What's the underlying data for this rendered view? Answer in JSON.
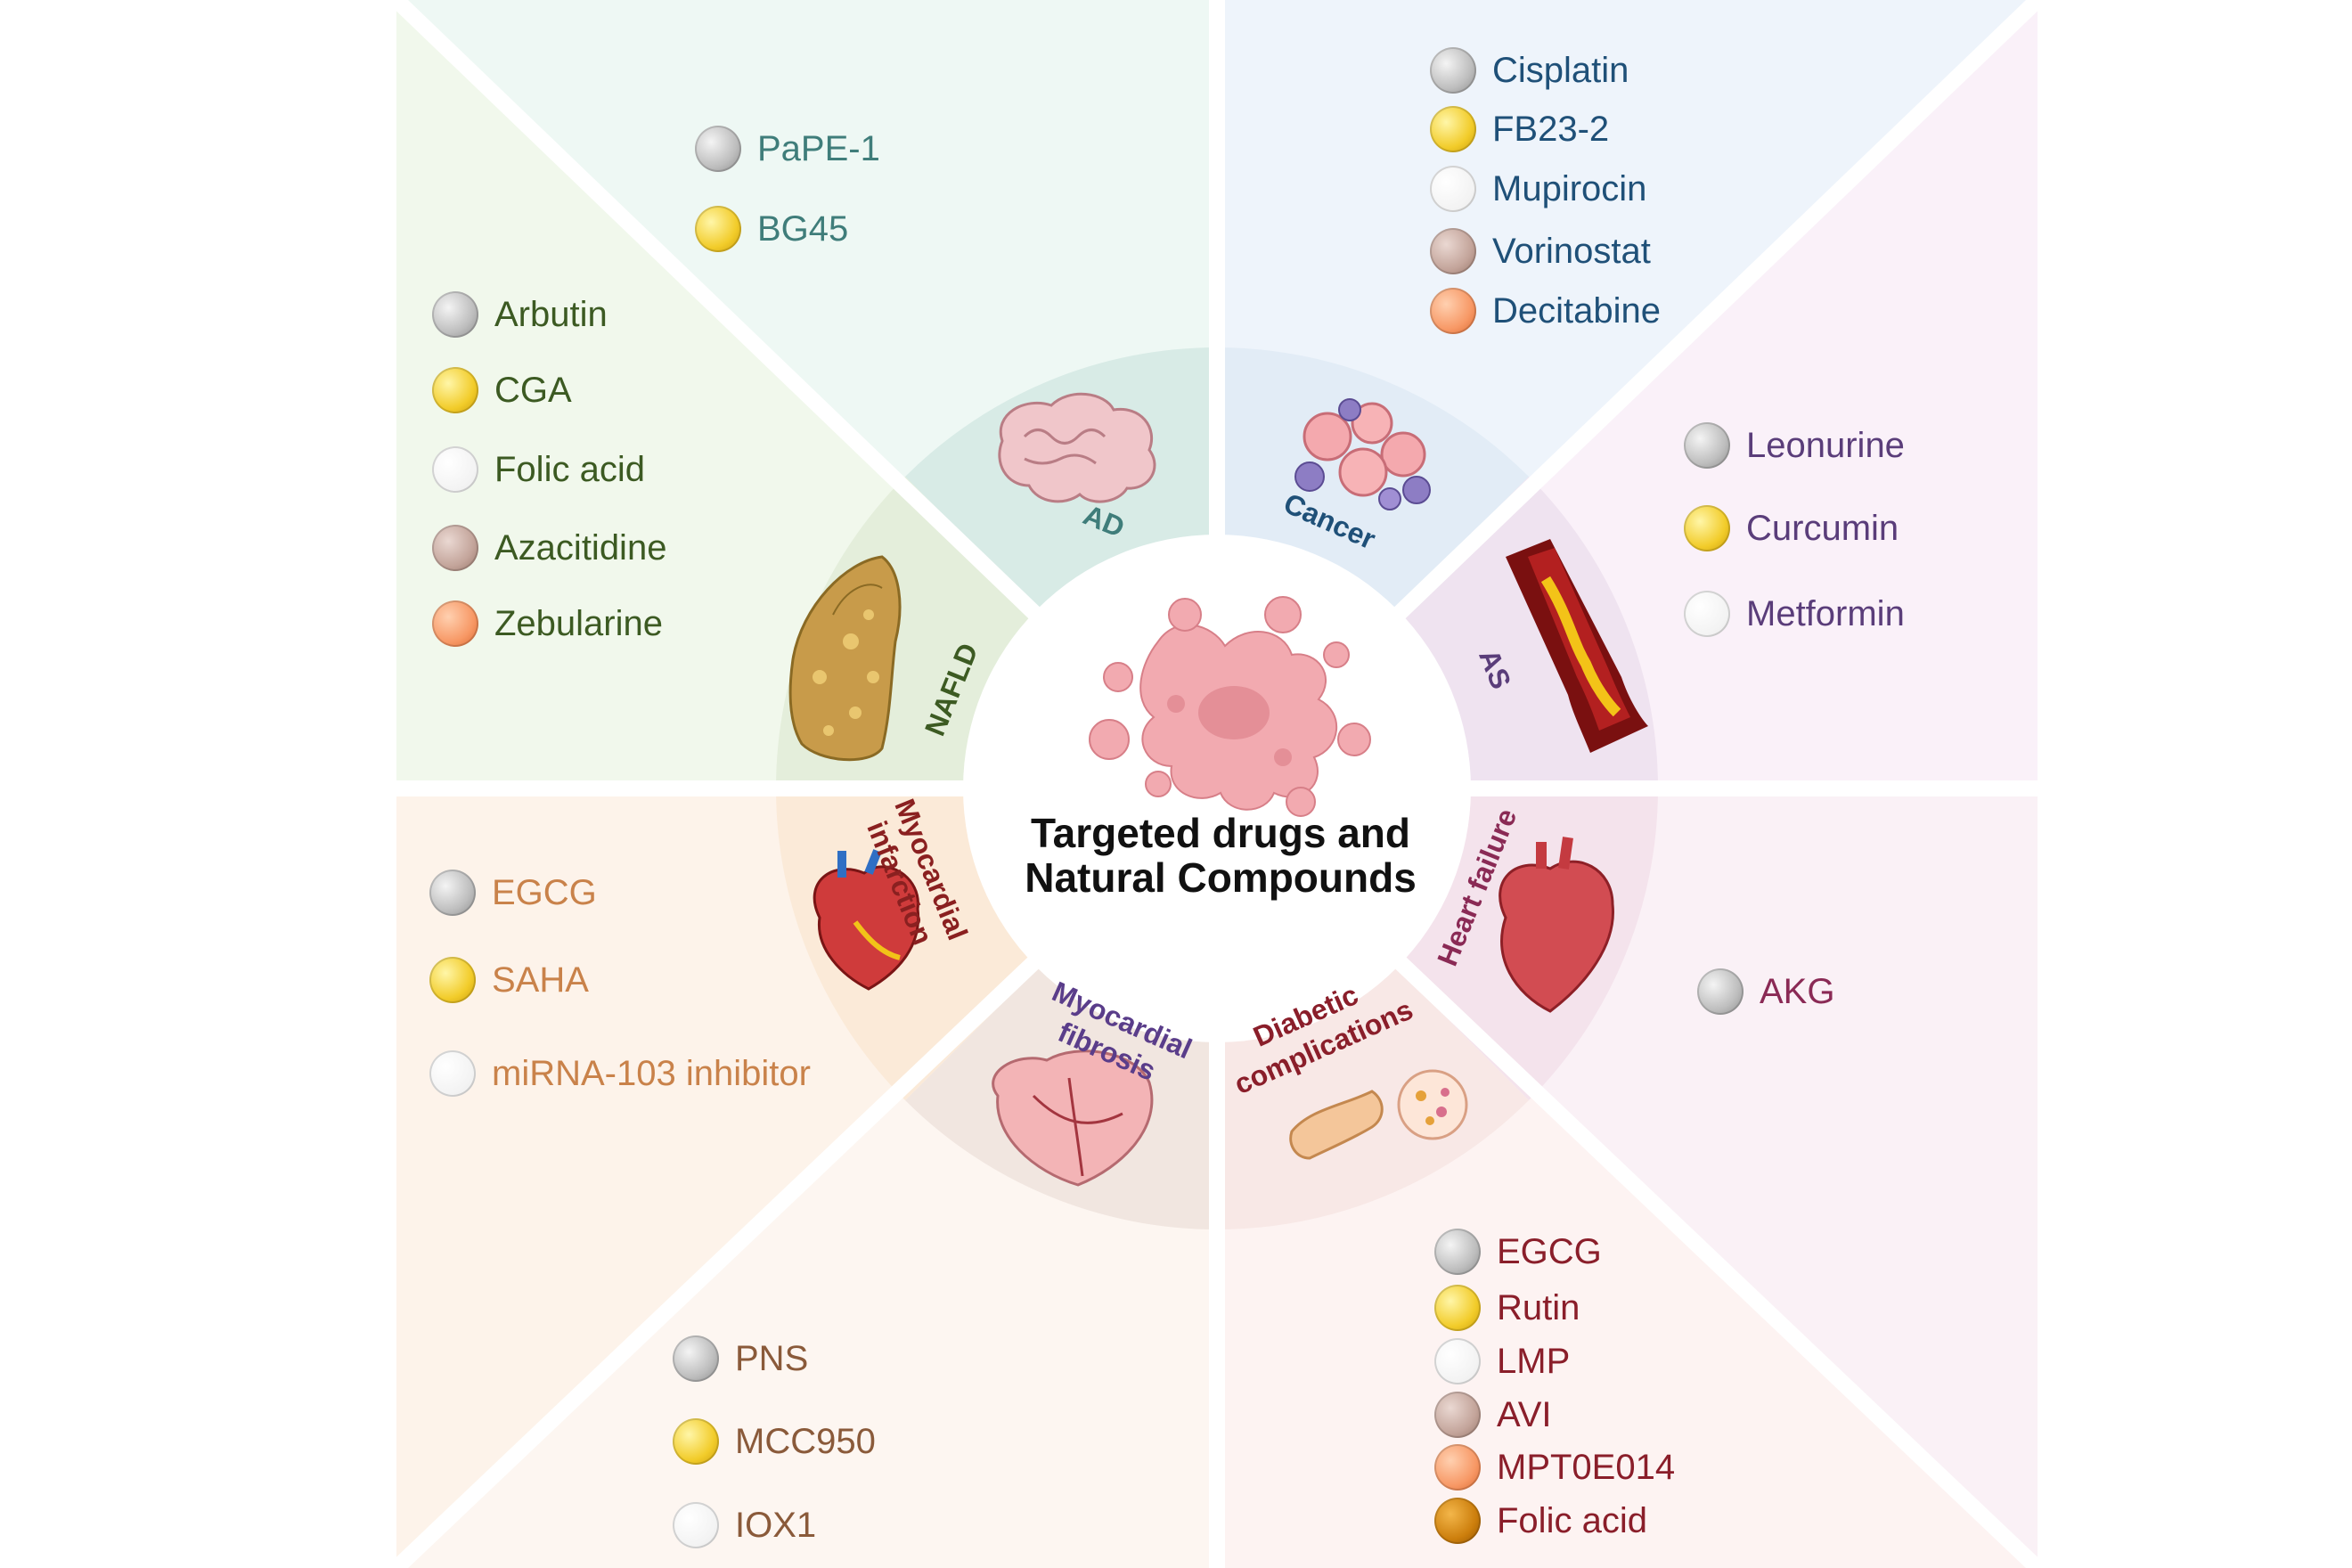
{
  "center": {
    "title_line1": "Targeted drugs and",
    "title_line2": "Natural Compounds"
  },
  "colors": {
    "ad": "#3f7d7a",
    "cancer": "#1f5078",
    "as": "#5a3d7a",
    "nafld": "#3c5a22",
    "heart_failure": "#8a2a55",
    "myocardial_infarction": "#8a2020",
    "myocardial_fibrosis": "#5a3d8a",
    "diabetic": "#8a1e2a"
  },
  "diseases": {
    "ad": "AD",
    "cancer": "Cancer",
    "as": "AS",
    "nafld": "NAFLD",
    "heart_failure": "Heart failure",
    "myocardial_infarction_1": "Myocardial",
    "myocardial_infarction_2": "infarction",
    "myocardial_fibrosis_1": "Myocardial",
    "myocardial_fibrosis_2": "fibrosis",
    "diabetic_1": "Diabetic",
    "diabetic_2": "complications"
  },
  "drugs": {
    "ad": [
      "PaPE-1",
      "BG45"
    ],
    "cancer": [
      "Cisplatin",
      "FB23-2",
      "Mupirocin",
      "Vorinostat",
      "Decitabine"
    ],
    "as": [
      "Leonurine",
      "Curcumin",
      "Metformin"
    ],
    "nafld": [
      "Arbutin",
      "CGA",
      "Folic acid",
      "Azacitidine",
      "Zebularine"
    ],
    "heart_failure": [
      "AKG"
    ],
    "myocardial_infarction": [
      "EGCG",
      "SAHA",
      "miRNA-103 inhibitor"
    ],
    "myocardial_fibrosis": [
      "PNS",
      "MCC950",
      "IOX1"
    ],
    "diabetic": [
      "EGCG",
      "Rutin",
      "LMP",
      "AVI",
      "MPT0E014",
      "Folic acid"
    ]
  }
}
